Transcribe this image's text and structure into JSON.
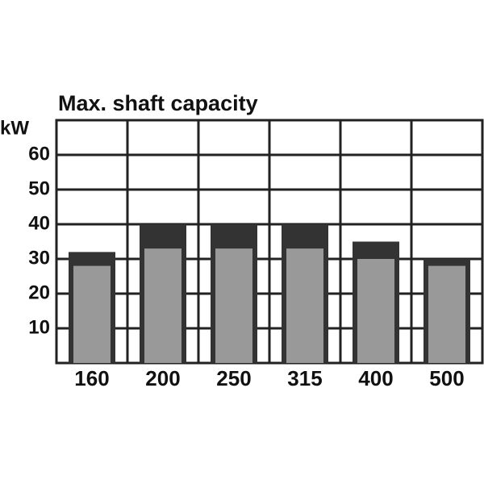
{
  "chart_data": {
    "type": "bar",
    "title": "Max. shaft capacity",
    "y_label": "kW",
    "categories": [
      "160",
      "200",
      "250",
      "315",
      "400",
      "500"
    ],
    "series": [
      {
        "color": "#333333",
        "values": [
          32,
          40,
          40,
          40,
          35,
          30
        ]
      },
      {
        "color": "#999999",
        "values": [
          28,
          33,
          33,
          33,
          30,
          28
        ]
      }
    ],
    "ylim": [
      0,
      70
    ],
    "yticks": [
      10,
      20,
      30,
      40,
      50,
      60
    ],
    "grid": true
  }
}
